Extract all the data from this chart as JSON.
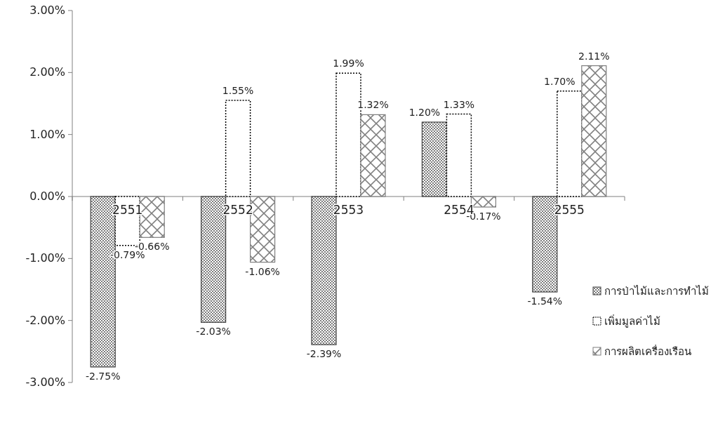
{
  "chart_data": {
    "type": "bar",
    "categories": [
      "2551",
      "2552",
      "2553",
      "2554",
      "2555"
    ],
    "series": [
      {
        "name": "การป่าไม้และการทำไม้",
        "color": "#404040",
        "values": [
          -2.75,
          -2.03,
          -2.39,
          1.2,
          -1.54
        ],
        "value_labels": [
          "-2.75%",
          "-2.03%",
          "-2.39%",
          "1.20%",
          "-1.54%"
        ]
      },
      {
        "name": "เพิ่มมูลค่าไม้",
        "color": "#000000",
        "line_style": "dotted",
        "values": [
          -0.79,
          1.55,
          1.99,
          1.33,
          1.7
        ],
        "value_labels": [
          "-0.79%",
          "1.55%",
          "1.99%",
          "1.33%",
          "1.70%"
        ]
      },
      {
        "name": "การผลิตเครื่องเรือน",
        "color": "#7f7f7f",
        "values": [
          -0.66,
          -1.06,
          1.32,
          -0.17,
          2.11
        ],
        "value_labels": [
          "-0.66%",
          "-1.06%",
          "1.32%",
          "-0.17%",
          "2.11%"
        ]
      }
    ],
    "ylim": [
      -3,
      3
    ],
    "yticks": [
      {
        "value": -3,
        "label": "-3.00%"
      },
      {
        "value": -2,
        "label": "-2.00%"
      },
      {
        "value": -1,
        "label": "-1.00%"
      },
      {
        "value": 0,
        "label": "0.00%"
      },
      {
        "value": 1,
        "label": "1.00%"
      },
      {
        "value": 2,
        "label": "2.00%"
      },
      {
        "value": 3,
        "label": "3.00%"
      }
    ],
    "legend": "right",
    "grid": false
  }
}
